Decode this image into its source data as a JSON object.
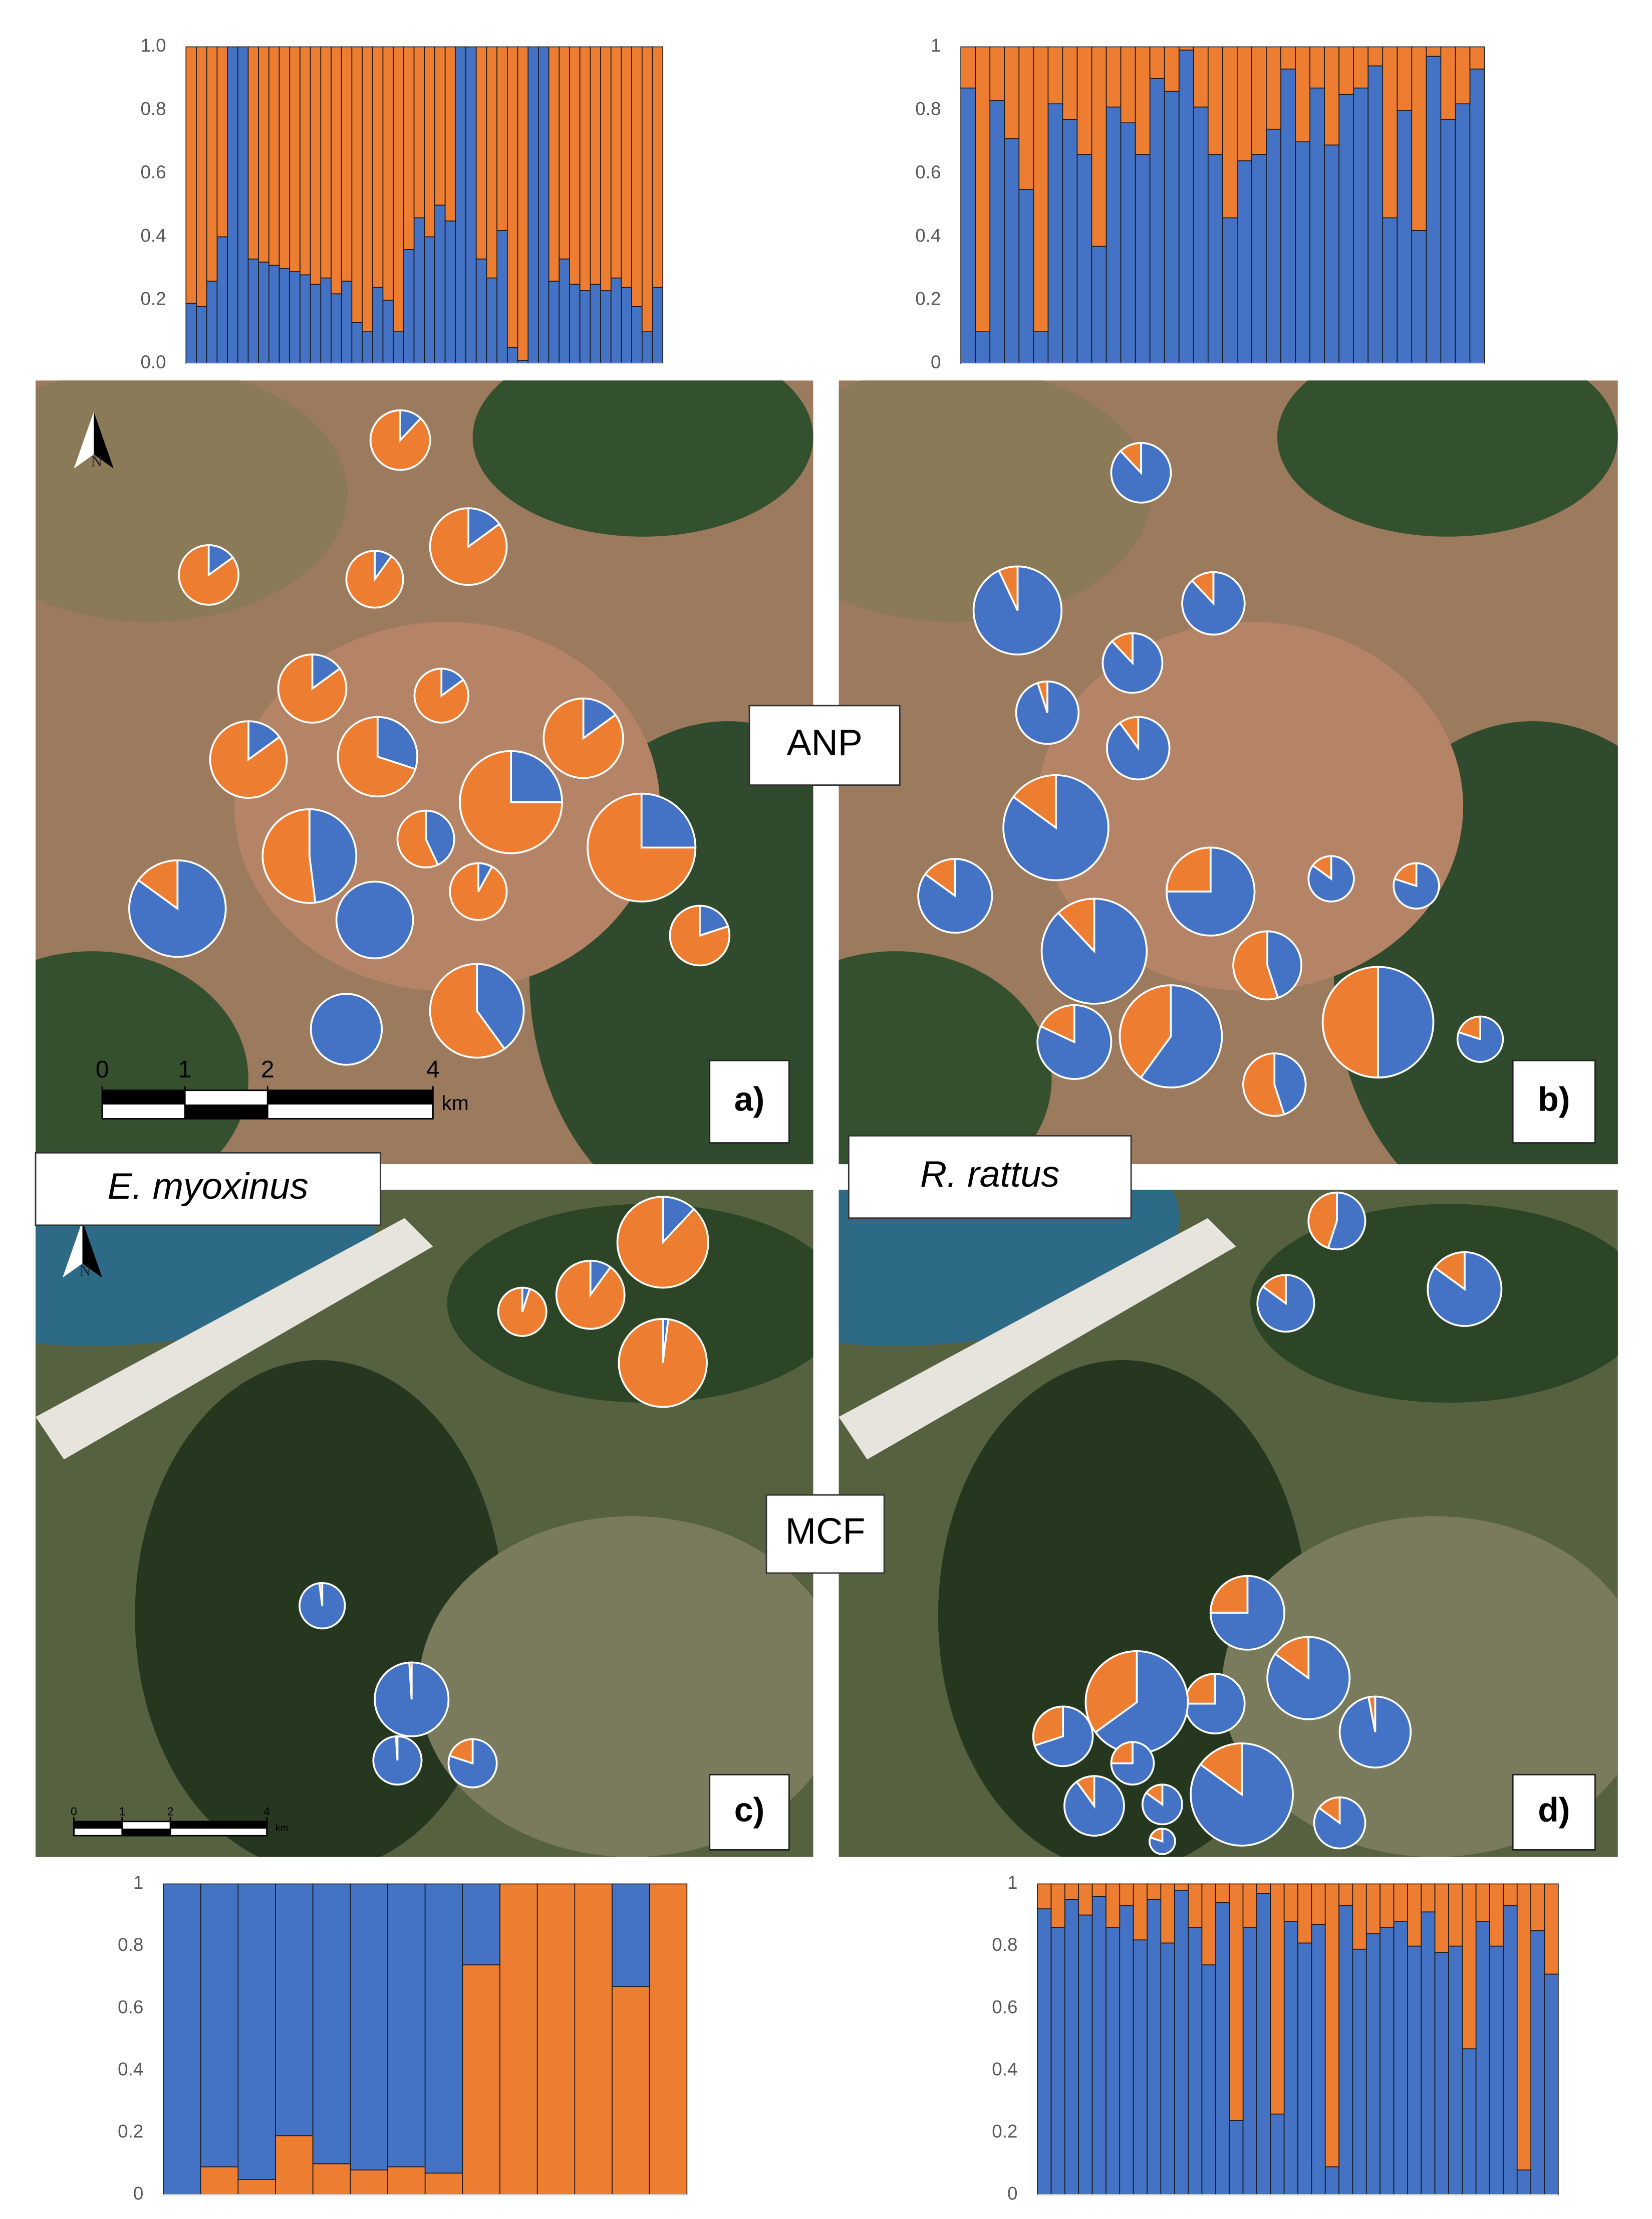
{
  "chart_data": [
    {
      "type": "bar",
      "stacked": true,
      "ylim": [
        0,
        1
      ],
      "yticks": [
        {
          "value": 0,
          "label": "0.0"
        },
        0.2,
        0.4,
        0.6,
        0.8,
        {
          "value": 1,
          "label": "1.0"
        }
      ],
      "series": [
        {
          "color": "#4472c4",
          "values": [
            0.19,
            0.18,
            0.26,
            0.4,
            1,
            1,
            0.33,
            0.32,
            0.31,
            0.3,
            0.29,
            0.28,
            0.25,
            0.27,
            0.22,
            0.26,
            0.13,
            0.1,
            0.24,
            0.2,
            0.1,
            0.36,
            0.46,
            0.4,
            0.5,
            0.45,
            1,
            1,
            0.33,
            0.27,
            0.42,
            0.05,
            0.01,
            1,
            1,
            0.26,
            0.33,
            0.25,
            0.23,
            0.25,
            0.23,
            0.27,
            0.24,
            0.18,
            0.1,
            0.24
          ]
        },
        {
          "color": "#ed7d31",
          "values": [
            0.81,
            0.82,
            0.74,
            0.6,
            0,
            0,
            0.67,
            0.68,
            0.69,
            0.7,
            0.71,
            0.72,
            0.75,
            0.73,
            0.78,
            0.74,
            0.87,
            0.9,
            0.76,
            0.8,
            0.9,
            0.64,
            0.54,
            0.6,
            0.5,
            0.55,
            0,
            0,
            0.67,
            0.73,
            0.58,
            0.95,
            0.99,
            0,
            0,
            0.74,
            0.67,
            0.75,
            0.77,
            0.75,
            0.77,
            0.73,
            0.76,
            0.82,
            0.9,
            0.76
          ]
        }
      ]
    },
    {
      "type": "bar",
      "stacked": true,
      "ylim": [
        0,
        1
      ],
      "yticks": [
        0,
        0.2,
        0.4,
        0.6,
        0.8,
        1
      ],
      "series": [
        {
          "color": "#4472c4",
          "values": [
            0.87,
            0.1,
            0.83,
            0.71,
            0.55,
            0.1,
            0.82,
            0.77,
            0.66,
            0.37,
            0.81,
            0.76,
            0.66,
            0.9,
            0.86,
            0.99,
            0.81,
            0.66,
            0.46,
            0.64,
            0.66,
            0.74,
            0.93,
            0.7,
            0.87,
            0.69,
            0.85,
            0.87,
            0.94,
            0.46,
            0.8,
            0.42,
            0.97,
            0.77,
            0.82,
            0.93
          ]
        },
        {
          "color": "#ed7d31",
          "values": [
            0.13,
            0.9,
            0.17,
            0.29,
            0.45,
            0.9,
            0.18,
            0.23,
            0.34,
            0.63,
            0.19,
            0.24,
            0.34,
            0.1,
            0.14,
            0.01,
            0.19,
            0.34,
            0.54,
            0.36,
            0.34,
            0.26,
            0.07,
            0.3,
            0.13,
            0.31,
            0.15,
            0.13,
            0.06,
            0.54,
            0.2,
            0.58,
            0.03,
            0.23,
            0.18,
            0.07
          ]
        }
      ]
    },
    {
      "type": "bar",
      "stacked": true,
      "ylim": [
        0,
        1
      ],
      "yticks": [
        0,
        0.2,
        0.4,
        0.6,
        0.8,
        1
      ],
      "series": [
        {
          "color": "#ed7d31",
          "values": [
            0,
            0.09,
            0.05,
            0.19,
            0.1,
            0.08,
            0.09,
            0.07,
            0.74,
            1,
            1,
            1,
            0.67,
            1
          ]
        },
        {
          "color": "#4472c4",
          "values": [
            1,
            0.91,
            0.95,
            0.81,
            0.9,
            0.92,
            0.91,
            0.93,
            0.26,
            0,
            0,
            0,
            0.33,
            0
          ]
        }
      ]
    },
    {
      "type": "bar",
      "stacked": true,
      "ylim": [
        0,
        1
      ],
      "yticks": [
        0,
        0.2,
        0.4,
        0.6,
        0.8,
        1
      ],
      "series": [
        {
          "color": "#4472c4",
          "values": [
            0.92,
            0.86,
            0.95,
            0.9,
            0.96,
            0.86,
            0.93,
            0.82,
            0.95,
            0.81,
            0.98,
            0.86,
            0.74,
            0.94,
            0.24,
            0.86,
            0.97,
            0.26,
            0.88,
            0.81,
            0.87,
            0.09,
            0.93,
            0.79,
            0.84,
            0.86,
            0.88,
            0.8,
            0.91,
            0.78,
            0.8,
            0.47,
            0.88,
            0.8,
            0.93,
            0.08,
            0.85,
            0.71
          ]
        },
        {
          "color": "#ed7d31",
          "values": [
            0.08,
            0.14,
            0.05,
            0.1,
            0.04,
            0.14,
            0.07,
            0.18,
            0.05,
            0.19,
            0.02,
            0.14,
            0.26,
            0.06,
            0.76,
            0.14,
            0.03,
            0.74,
            0.12,
            0.19,
            0.13,
            0.91,
            0.07,
            0.21,
            0.16,
            0.14,
            0.12,
            0.2,
            0.09,
            0.22,
            0.2,
            0.53,
            0.12,
            0.2,
            0.07,
            0.92,
            0.15,
            0.29
          ]
        }
      ]
    }
  ],
  "pie_colors": [
    "#4472c4",
    "#ed7d31"
  ],
  "maps": [
    {
      "label": "a)",
      "north": "N",
      "pies": [
        [
          0.12,
          0.88
        ],
        [
          0.15,
          0.85
        ],
        [
          0.1,
          0.9
        ],
        [
          0.15,
          0.85
        ],
        [
          0.15,
          0.85
        ],
        [
          0.15,
          0.85
        ],
        [
          0.15,
          0.85
        ],
        [
          0.3,
          0.7
        ],
        [
          0.15,
          0.85
        ],
        [
          0.25,
          0.75
        ],
        [
          0.48,
          0.52
        ],
        [
          0.43,
          0.57
        ],
        [
          0.25,
          0.75
        ],
        [
          0.08,
          0.92
        ],
        [
          0.85,
          0.15
        ],
        [
          1,
          0
        ],
        [
          0.2,
          0.8
        ],
        [
          0.4,
          0.6
        ],
        [
          1,
          0
        ]
      ]
    },
    {
      "label": "b)",
      "pies": [
        [
          0.88,
          0.12
        ],
        [
          0.93,
          0.07
        ],
        [
          0.88,
          0.12
        ],
        [
          0.88,
          0.12
        ],
        [
          0.95,
          0.05
        ],
        [
          0.9,
          0.1
        ],
        [
          0.85,
          0.15
        ],
        [
          0.75,
          0.25
        ],
        [
          0.85,
          0.15
        ],
        [
          0.88,
          0.12
        ],
        [
          0.85,
          0.15
        ],
        [
          0.8,
          0.2
        ],
        [
          0.45,
          0.55
        ],
        [
          0.82,
          0.18
        ],
        [
          0.6,
          0.4
        ],
        [
          0.45,
          0.55
        ],
        [
          0.5,
          0.5
        ],
        [
          0.8,
          0.2
        ]
      ]
    },
    {
      "label": "c)",
      "north": "N",
      "pies": [
        [
          0.12,
          0.88
        ],
        [
          0.05,
          0.95
        ],
        [
          0.1,
          0.9
        ],
        [
          0.02,
          0.98
        ],
        [
          0.98,
          0.02
        ],
        [
          0.99,
          0.01
        ],
        [
          0.99,
          0.01
        ],
        [
          0.8,
          0.2
        ]
      ]
    },
    {
      "label": "d)",
      "pies": [
        [
          0.55,
          0.45
        ],
        [
          0.85,
          0.15
        ],
        [
          0.85,
          0.15
        ],
        [
          0.75,
          0.25
        ],
        [
          0.75,
          0.25
        ],
        [
          0.85,
          0.15
        ],
        [
          0.97,
          0.03
        ],
        [
          0.65,
          0.35
        ],
        [
          0.7,
          0.3
        ],
        [
          0.75,
          0.25
        ],
        [
          0.9,
          0.1
        ],
        [
          0.85,
          0.15
        ],
        [
          0.85,
          0.15
        ],
        [
          0.85,
          0.15
        ],
        [
          0.8,
          0.2
        ]
      ]
    }
  ],
  "scale_bars": [
    {
      "ticks": [
        0,
        1,
        2,
        4
      ],
      "unit": "km"
    },
    {
      "ticks": [
        0,
        1,
        2,
        4
      ],
      "unit": "km"
    }
  ],
  "site_labels": [
    "ANP",
    "MCF"
  ],
  "species": [
    "E. myoxinus",
    "R. rattus"
  ]
}
